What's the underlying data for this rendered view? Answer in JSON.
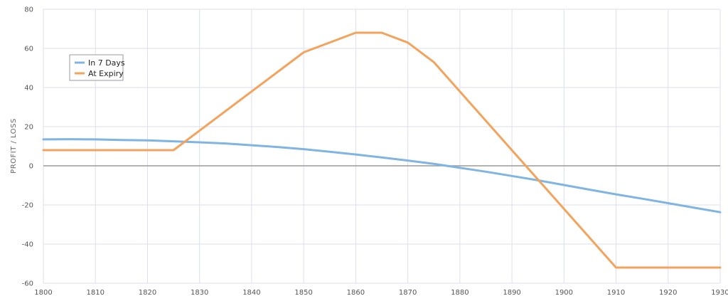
{
  "chart_data": {
    "type": "line",
    "title": "",
    "xlabel": "",
    "ylabel": "PROFIT / LOSS",
    "xlim": [
      1800,
      1930
    ],
    "ylim": [
      -60,
      80
    ],
    "x_ticks": [
      "1800",
      "1810",
      "1820",
      "1830",
      "1840",
      "1850",
      "1860",
      "1870",
      "1880",
      "1890",
      "1900",
      "1910",
      "1920",
      "1930"
    ],
    "y_ticks": [
      "80",
      "60",
      "40",
      "20",
      "0",
      "-20",
      "-40",
      "-60"
    ],
    "grid": true,
    "legend_position": "top-left",
    "series": [
      {
        "name": "In 7 Days",
        "color": "#7fb4e3",
        "points": [
          [
            1800,
            13.5
          ],
          [
            1805,
            13.6
          ],
          [
            1810,
            13.5
          ],
          [
            1815,
            13.2
          ],
          [
            1820,
            13.0
          ],
          [
            1825,
            12.5
          ],
          [
            1830,
            12.0
          ],
          [
            1835,
            11.4
          ],
          [
            1840,
            10.5
          ],
          [
            1845,
            9.6
          ],
          [
            1850,
            8.5
          ],
          [
            1855,
            7.2
          ],
          [
            1860,
            5.8
          ],
          [
            1865,
            4.3
          ],
          [
            1870,
            2.7
          ],
          [
            1875,
            1.0
          ],
          [
            1880,
            -1.0
          ],
          [
            1885,
            -3.0
          ],
          [
            1890,
            -5.2
          ],
          [
            1895,
            -7.4
          ],
          [
            1900,
            -9.8
          ],
          [
            1905,
            -12.2
          ],
          [
            1910,
            -14.6
          ],
          [
            1915,
            -16.8
          ],
          [
            1920,
            -19.1
          ],
          [
            1925,
            -21.4
          ],
          [
            1930,
            -23.7
          ]
        ]
      },
      {
        "name": "At Expiry",
        "color": "#f4a35c",
        "points": [
          [
            1800,
            8
          ],
          [
            1825,
            8
          ],
          [
            1850,
            58
          ],
          [
            1860,
            68
          ],
          [
            1865,
            68
          ],
          [
            1870,
            63
          ],
          [
            1875,
            53
          ],
          [
            1910,
            -52
          ],
          [
            1930,
            -52
          ]
        ]
      }
    ]
  }
}
